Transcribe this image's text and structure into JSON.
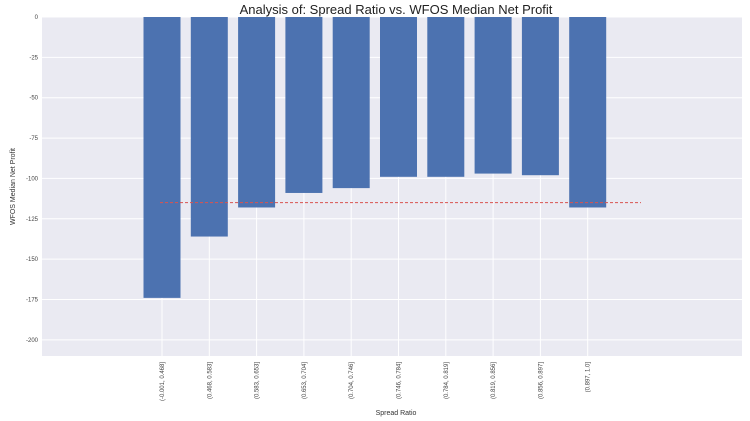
{
  "chart_data": {
    "type": "bar",
    "title": "Analysis of: Spread Ratio vs. WFOS Median Net Profit",
    "xlabel": "Spread Ratio",
    "ylabel": "WFOS Median Net Profit",
    "categories": [
      "(-0.001, 0.468]",
      "(0.468, 0.583]",
      "(0.583, 0.653]",
      "(0.653, 0.704]",
      "(0.704, 0.746]",
      "(0.746, 0.784]",
      "(0.784, 0.819]",
      "(0.819, 0.856]",
      "(0.856, 0.897]",
      "(0.897, 1.0]"
    ],
    "values": [
      -174,
      -136,
      -118,
      -109,
      -106,
      -99,
      -99,
      -97,
      -98,
      -118
    ],
    "reference_line": {
      "value": -115,
      "style": "dashed",
      "color": "#d9534f"
    },
    "ylim": [
      -210,
      0
    ],
    "yticks": [
      0,
      -25,
      -50,
      -75,
      -100,
      -125,
      -150,
      -175,
      -200
    ],
    "grid": true,
    "bar_color": "#4c72b0",
    "background_color": "#eaeaf2"
  }
}
